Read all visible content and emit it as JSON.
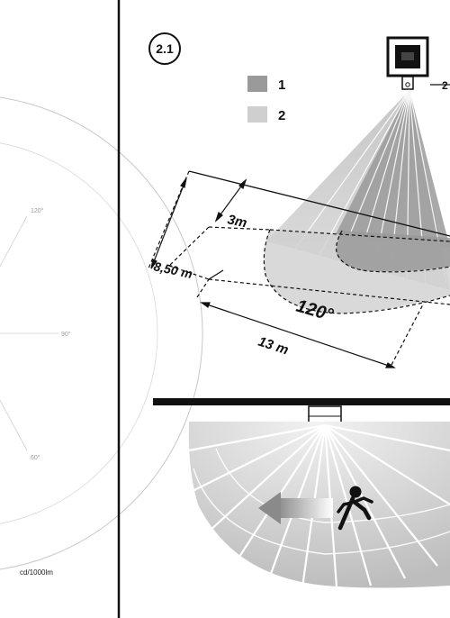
{
  "figure_number": "2.1",
  "legend": [
    {
      "label": "1",
      "color": "#9a9a9a"
    },
    {
      "label": "2",
      "color": "#cfcfcf"
    }
  ],
  "callout_number": "2",
  "dimensions": {
    "sensor_depth": "3m",
    "range_depth": "8,50 m",
    "range_width": "13 m",
    "detection_angle": "120°"
  },
  "polar": {
    "angle_labels": [
      "120°",
      "90°",
      "60°"
    ],
    "unit": "cd/1000lm"
  },
  "colors": {
    "zone_1": "#9a9a9a",
    "zone_2": "#cfcfcf",
    "divider": "#111111"
  },
  "icons": [
    "floodlight-icon",
    "motion-sensor-icon",
    "walking-person-icon",
    "motion-arrow-icon"
  ]
}
